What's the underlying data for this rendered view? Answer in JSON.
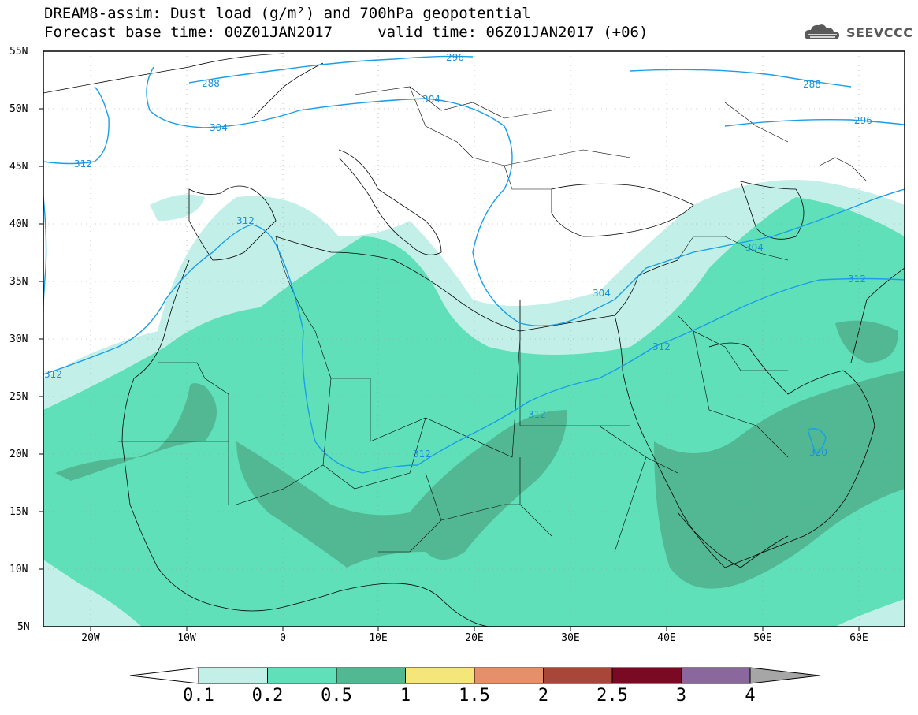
{
  "title": {
    "line1": "DREAM8-assim: Dust load (g/m²) and 700hPa geopotential",
    "line2": "Forecast base time: 00Z01JAN2017     valid time: 06Z01JAN2017 (+06)"
  },
  "logo": {
    "text": "SEEVCCC",
    "icon": "cloud-icon"
  },
  "map": {
    "lat_ticks": [
      "55N",
      "50N",
      "45N",
      "40N",
      "35N",
      "30N",
      "25N",
      "20N",
      "15N",
      "10N",
      "5N"
    ],
    "lon_ticks": [
      "20W",
      "10W",
      "0",
      "10E",
      "20E",
      "30E",
      "40E",
      "50E",
      "60E"
    ],
    "contour_labels": [
      "288",
      "296",
      "304",
      "312",
      "288",
      "296",
      "304",
      "312",
      "312",
      "304",
      "304",
      "312",
      "312",
      "312",
      "320",
      "312"
    ]
  },
  "colorbar": {
    "levels": [
      "0.1",
      "0.2",
      "0.5",
      "1",
      "1.5",
      "2",
      "2.5",
      "3",
      "4"
    ],
    "colors": [
      "#c2f0e8",
      "#5fe0b9",
      "#52b893",
      "#f5e67a",
      "#e5906a",
      "#a8463a",
      "#7a0a23",
      "#8a679c",
      "#a6a6a6"
    ],
    "under_color": "#ffffff"
  },
  "colors": {
    "contour": "#1a9ee8",
    "dust_low": "#c2f0e8",
    "dust_mid": "#5fe0b9",
    "dust_high": "#52b893"
  }
}
